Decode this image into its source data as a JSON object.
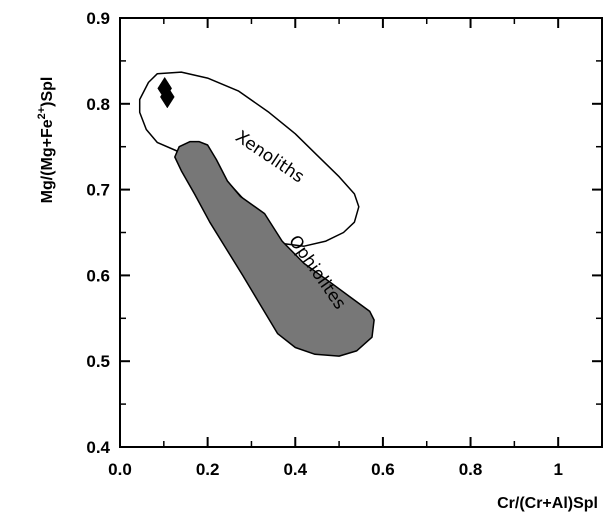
{
  "chart_data": {
    "type": "scatter",
    "xlabel": "Cr/(Cr+Al)Spl",
    "ylabel_parts": {
      "base": "Mg/(Mg+Fe",
      "sup": "2+",
      "tail": ")Spl"
    },
    "xlim": [
      0.0,
      1.1
    ],
    "ylim": [
      0.4,
      0.9
    ],
    "x_ticks": [
      0.0,
      0.2,
      0.4,
      0.6,
      0.8,
      1
    ],
    "x_tick_labels": [
      "0.0",
      "0.2",
      "0.4",
      "0.6",
      "0.8",
      "1"
    ],
    "y_ticks": [
      0.4,
      0.5,
      0.6,
      0.7,
      0.8,
      0.9
    ],
    "y_tick_labels": [
      "0.4",
      "0.5",
      "0.6",
      "0.7",
      "0.8",
      "0.9"
    ],
    "minor_ticks": true,
    "grid": false,
    "fields": [
      {
        "name": "Xenoliths",
        "fill": "#ffffff",
        "stroke": "#000000",
        "label_at": [
          0.335,
          0.733
        ],
        "label_rotation": 34,
        "polygon": [
          [
            0.085,
            0.835
          ],
          [
            0.065,
            0.825
          ],
          [
            0.045,
            0.805
          ],
          [
            0.045,
            0.79
          ],
          [
            0.06,
            0.77
          ],
          [
            0.085,
            0.755
          ],
          [
            0.13,
            0.745
          ],
          [
            0.185,
            0.735
          ],
          [
            0.235,
            0.715
          ],
          [
            0.28,
            0.69
          ],
          [
            0.32,
            0.665
          ],
          [
            0.35,
            0.646
          ],
          [
            0.375,
            0.637
          ],
          [
            0.42,
            0.634
          ],
          [
            0.47,
            0.64
          ],
          [
            0.51,
            0.65
          ],
          [
            0.535,
            0.662
          ],
          [
            0.545,
            0.68
          ],
          [
            0.535,
            0.695
          ],
          [
            0.5,
            0.715
          ],
          [
            0.45,
            0.74
          ],
          [
            0.4,
            0.765
          ],
          [
            0.34,
            0.79
          ],
          [
            0.27,
            0.815
          ],
          [
            0.2,
            0.83
          ],
          [
            0.14,
            0.837
          ]
        ]
      },
      {
        "name": "Ophiolites",
        "fill": "#777777",
        "stroke": "#000000",
        "label_at": [
          0.44,
          0.6
        ],
        "label_rotation": 55,
        "polygon": [
          [
            0.18,
            0.756
          ],
          [
            0.2,
            0.752
          ],
          [
            0.22,
            0.735
          ],
          [
            0.245,
            0.71
          ],
          [
            0.275,
            0.692
          ],
          [
            0.33,
            0.672
          ],
          [
            0.37,
            0.64
          ],
          [
            0.42,
            0.614
          ],
          [
            0.48,
            0.592
          ],
          [
            0.525,
            0.575
          ],
          [
            0.57,
            0.558
          ],
          [
            0.58,
            0.548
          ],
          [
            0.575,
            0.528
          ],
          [
            0.54,
            0.512
          ],
          [
            0.5,
            0.506
          ],
          [
            0.445,
            0.508
          ],
          [
            0.4,
            0.516
          ],
          [
            0.36,
            0.532
          ],
          [
            0.32,
            0.566
          ],
          [
            0.28,
            0.6
          ],
          [
            0.24,
            0.633
          ],
          [
            0.205,
            0.662
          ],
          [
            0.17,
            0.695
          ],
          [
            0.14,
            0.722
          ],
          [
            0.125,
            0.738
          ],
          [
            0.135,
            0.75
          ],
          [
            0.16,
            0.756
          ]
        ]
      }
    ],
    "points": [
      {
        "marker": "diamond",
        "x": 0.102,
        "y": 0.818,
        "color": "#000000"
      },
      {
        "marker": "diamond",
        "x": 0.108,
        "y": 0.808,
        "color": "#000000"
      }
    ]
  }
}
